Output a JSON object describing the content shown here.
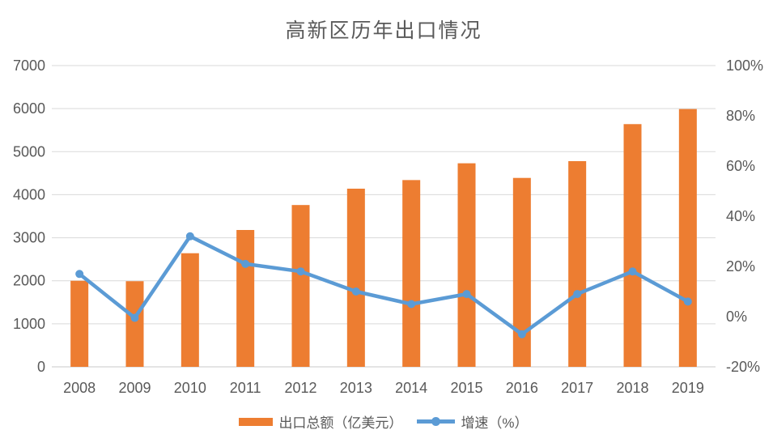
{
  "title": "高新区历年出口情况",
  "colors": {
    "bar": "#ED7D31",
    "line": "#5B9BD5",
    "text": "#595959",
    "gridline": "#D9D9D9",
    "axis_line": "#C8C8C8",
    "background": "#FFFFFF"
  },
  "legend": {
    "bar_label": "出口总额（亿美元）",
    "line_label": "增速（%）"
  },
  "chart_data": {
    "type": "bar",
    "subtype": "combo-bar-line-dual-axis",
    "title": "高新区历年出口情况",
    "categories": [
      "2008",
      "2009",
      "2010",
      "2011",
      "2012",
      "2013",
      "2014",
      "2015",
      "2016",
      "2017",
      "2018",
      "2019"
    ],
    "series": [
      {
        "name": "出口总额（亿美元）",
        "type": "bar",
        "axis": "left",
        "color": "#ED7D31",
        "values": [
          2000,
          1990,
          2640,
          3180,
          3760,
          4140,
          4340,
          4730,
          4390,
          4780,
          5640,
          5990
        ]
      },
      {
        "name": "增速（%）",
        "type": "line",
        "axis": "right",
        "color": "#5B9BD5",
        "marker": "circle",
        "values": [
          17,
          -0.5,
          32,
          21,
          18,
          10,
          5,
          9,
          -7,
          9,
          18,
          6
        ]
      }
    ],
    "left_axis": {
      "min": 0,
      "max": 7000,
      "step": 1000,
      "tick_labels_top_to_bottom": [
        "7000",
        "6000",
        "5000",
        "4000",
        "3000",
        "2000",
        "1000",
        "0"
      ]
    },
    "right_axis": {
      "min": -20,
      "max": 100,
      "step": 20,
      "tick_labels_top_to_bottom": [
        "100%",
        "80%",
        "60%",
        "40%",
        "20%",
        "0%",
        "-20%"
      ]
    },
    "xlabel": "",
    "ylabel": "",
    "grid": true,
    "legend_position": "bottom"
  }
}
